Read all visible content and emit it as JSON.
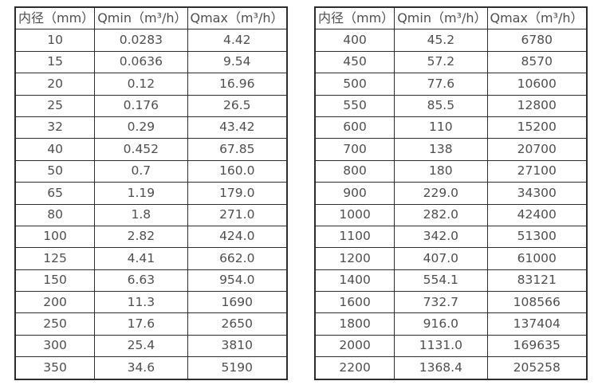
{
  "colors": {
    "border": "#2e2e2e",
    "text": "#4f4f4f",
    "background": "#ffffff"
  },
  "chart_data": [
    {
      "type": "table",
      "title": "",
      "columns": [
        "内径（mm）",
        "Qmin（m³/h）",
        "Qmax（m³/h）"
      ],
      "rows": [
        [
          "10",
          "0.0283",
          "4.42"
        ],
        [
          "15",
          "0.0636",
          "9.54"
        ],
        [
          "20",
          "0.12",
          "16.96"
        ],
        [
          "25",
          "0.176",
          "26.5"
        ],
        [
          "32",
          "0.29",
          "43.42"
        ],
        [
          "40",
          "0.452",
          "67.85"
        ],
        [
          "50",
          "0.7",
          "160.0"
        ],
        [
          "65",
          "1.19",
          "179.0"
        ],
        [
          "80",
          "1.8",
          "271.0"
        ],
        [
          "100",
          "2.82",
          "424.0"
        ],
        [
          "125",
          "4.41",
          "662.0"
        ],
        [
          "150",
          "6.63",
          "954.0"
        ],
        [
          "200",
          "11.3",
          "1690"
        ],
        [
          "250",
          "17.6",
          "2650"
        ],
        [
          "300",
          "25.4",
          "3810"
        ],
        [
          "350",
          "34.6",
          "5190"
        ]
      ]
    },
    {
      "type": "table",
      "title": "",
      "columns": [
        "内径（mm）",
        "Qmin（m³/h）",
        "Qmax（m³/h）"
      ],
      "rows": [
        [
          "400",
          "45.2",
          "6780"
        ],
        [
          "450",
          "57.2",
          "8570"
        ],
        [
          "500",
          "77.6",
          "10600"
        ],
        [
          "550",
          "85.5",
          "12800"
        ],
        [
          "600",
          "110",
          "15200"
        ],
        [
          "700",
          "138",
          "20700"
        ],
        [
          "800",
          "180",
          "27100"
        ],
        [
          "900",
          "229.0",
          "34300"
        ],
        [
          "1000",
          "282.0",
          "42400"
        ],
        [
          "1100",
          "342.0",
          "51300"
        ],
        [
          "1200",
          "407.0",
          "61000"
        ],
        [
          "1400",
          "554.1",
          "83121"
        ],
        [
          "1600",
          "732.7",
          "108566"
        ],
        [
          "1800",
          "916.0",
          "137404"
        ],
        [
          "2000",
          "1131.0",
          "169635"
        ],
        [
          "2200",
          "1368.4",
          "205258"
        ]
      ]
    }
  ]
}
